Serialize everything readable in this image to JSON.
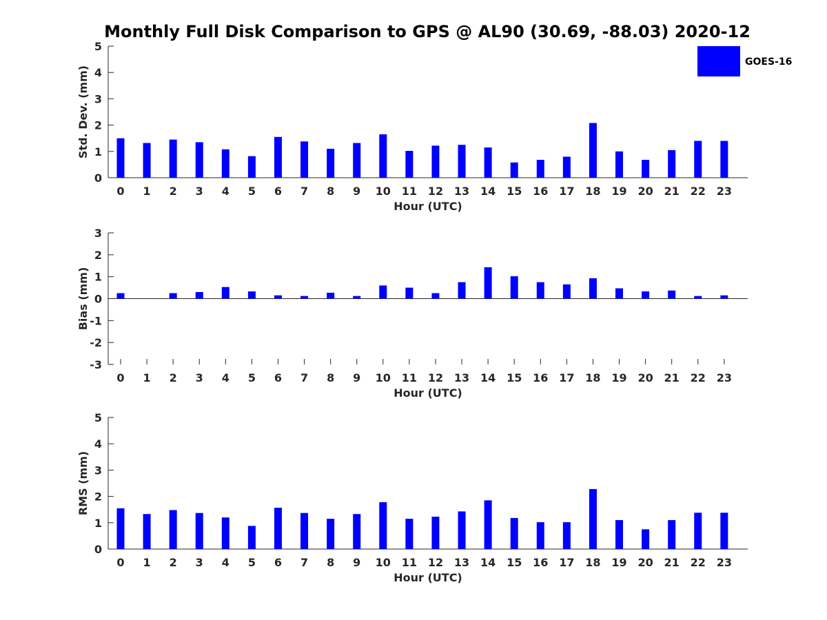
{
  "chart_data": [
    {
      "type": "bar",
      "title": "Monthly Full Disk Comparison to GPS @ AL90 (30.69, -88.03) 2020-12",
      "xlabel": "Hour (UTC)",
      "ylabel": "Std. Dev. (mm)",
      "ylim": [
        0,
        5
      ],
      "yticks": [
        "0",
        "1",
        "2",
        "3",
        "4",
        "5"
      ],
      "categories": [
        "0",
        "1",
        "2",
        "3",
        "4",
        "5",
        "6",
        "7",
        "8",
        "9",
        "10",
        "11",
        "12",
        "13",
        "14",
        "15",
        "16",
        "17",
        "18",
        "19",
        "20",
        "21",
        "22",
        "23"
      ],
      "series": [
        {
          "name": "GOES-16",
          "color": "#0000ff",
          "values": [
            1.5,
            1.32,
            1.45,
            1.35,
            1.08,
            0.82,
            1.55,
            1.38,
            1.1,
            1.32,
            1.65,
            1.02,
            1.22,
            1.25,
            1.15,
            0.58,
            0.68,
            0.8,
            2.08,
            1.0,
            0.68,
            1.05,
            1.4,
            1.4
          ]
        }
      ],
      "legend": {
        "placement": "top-right",
        "label": "GOES-16"
      }
    },
    {
      "type": "bar",
      "xlabel": "Hour (UTC)",
      "ylabel": "Bias (mm)",
      "ylim": [
        -3,
        3
      ],
      "yticks": [
        "-3",
        "-2",
        "-1",
        "0",
        "1",
        "2",
        "3"
      ],
      "categories": [
        "0",
        "1",
        "2",
        "3",
        "4",
        "5",
        "6",
        "7",
        "8",
        "9",
        "10",
        "11",
        "12",
        "13",
        "14",
        "15",
        "16",
        "17",
        "18",
        "19",
        "20",
        "21",
        "22",
        "23"
      ],
      "series": [
        {
          "name": "GOES-16",
          "color": "#0000ff",
          "values": [
            0.25,
            0.0,
            0.25,
            0.3,
            0.53,
            0.33,
            0.15,
            0.12,
            0.27,
            0.12,
            0.6,
            0.5,
            0.25,
            0.75,
            1.43,
            1.02,
            0.75,
            0.65,
            0.93,
            0.47,
            0.33,
            0.37,
            0.12,
            0.15
          ]
        }
      ]
    },
    {
      "type": "bar",
      "xlabel": "Hour (UTC)",
      "ylabel": "RMS (mm)",
      "ylim": [
        0,
        5
      ],
      "yticks": [
        "0",
        "1",
        "2",
        "3",
        "4",
        "5"
      ],
      "categories": [
        "0",
        "1",
        "2",
        "3",
        "4",
        "5",
        "6",
        "7",
        "8",
        "9",
        "10",
        "11",
        "12",
        "13",
        "14",
        "15",
        "16",
        "17",
        "18",
        "19",
        "20",
        "21",
        "22",
        "23"
      ],
      "series": [
        {
          "name": "GOES-16",
          "color": "#0000ff",
          "values": [
            1.55,
            1.33,
            1.48,
            1.37,
            1.2,
            0.88,
            1.57,
            1.37,
            1.15,
            1.33,
            1.78,
            1.15,
            1.23,
            1.43,
            1.85,
            1.18,
            1.02,
            1.02,
            2.28,
            1.1,
            0.75,
            1.1,
            1.38,
            1.38
          ]
        }
      ]
    }
  ]
}
